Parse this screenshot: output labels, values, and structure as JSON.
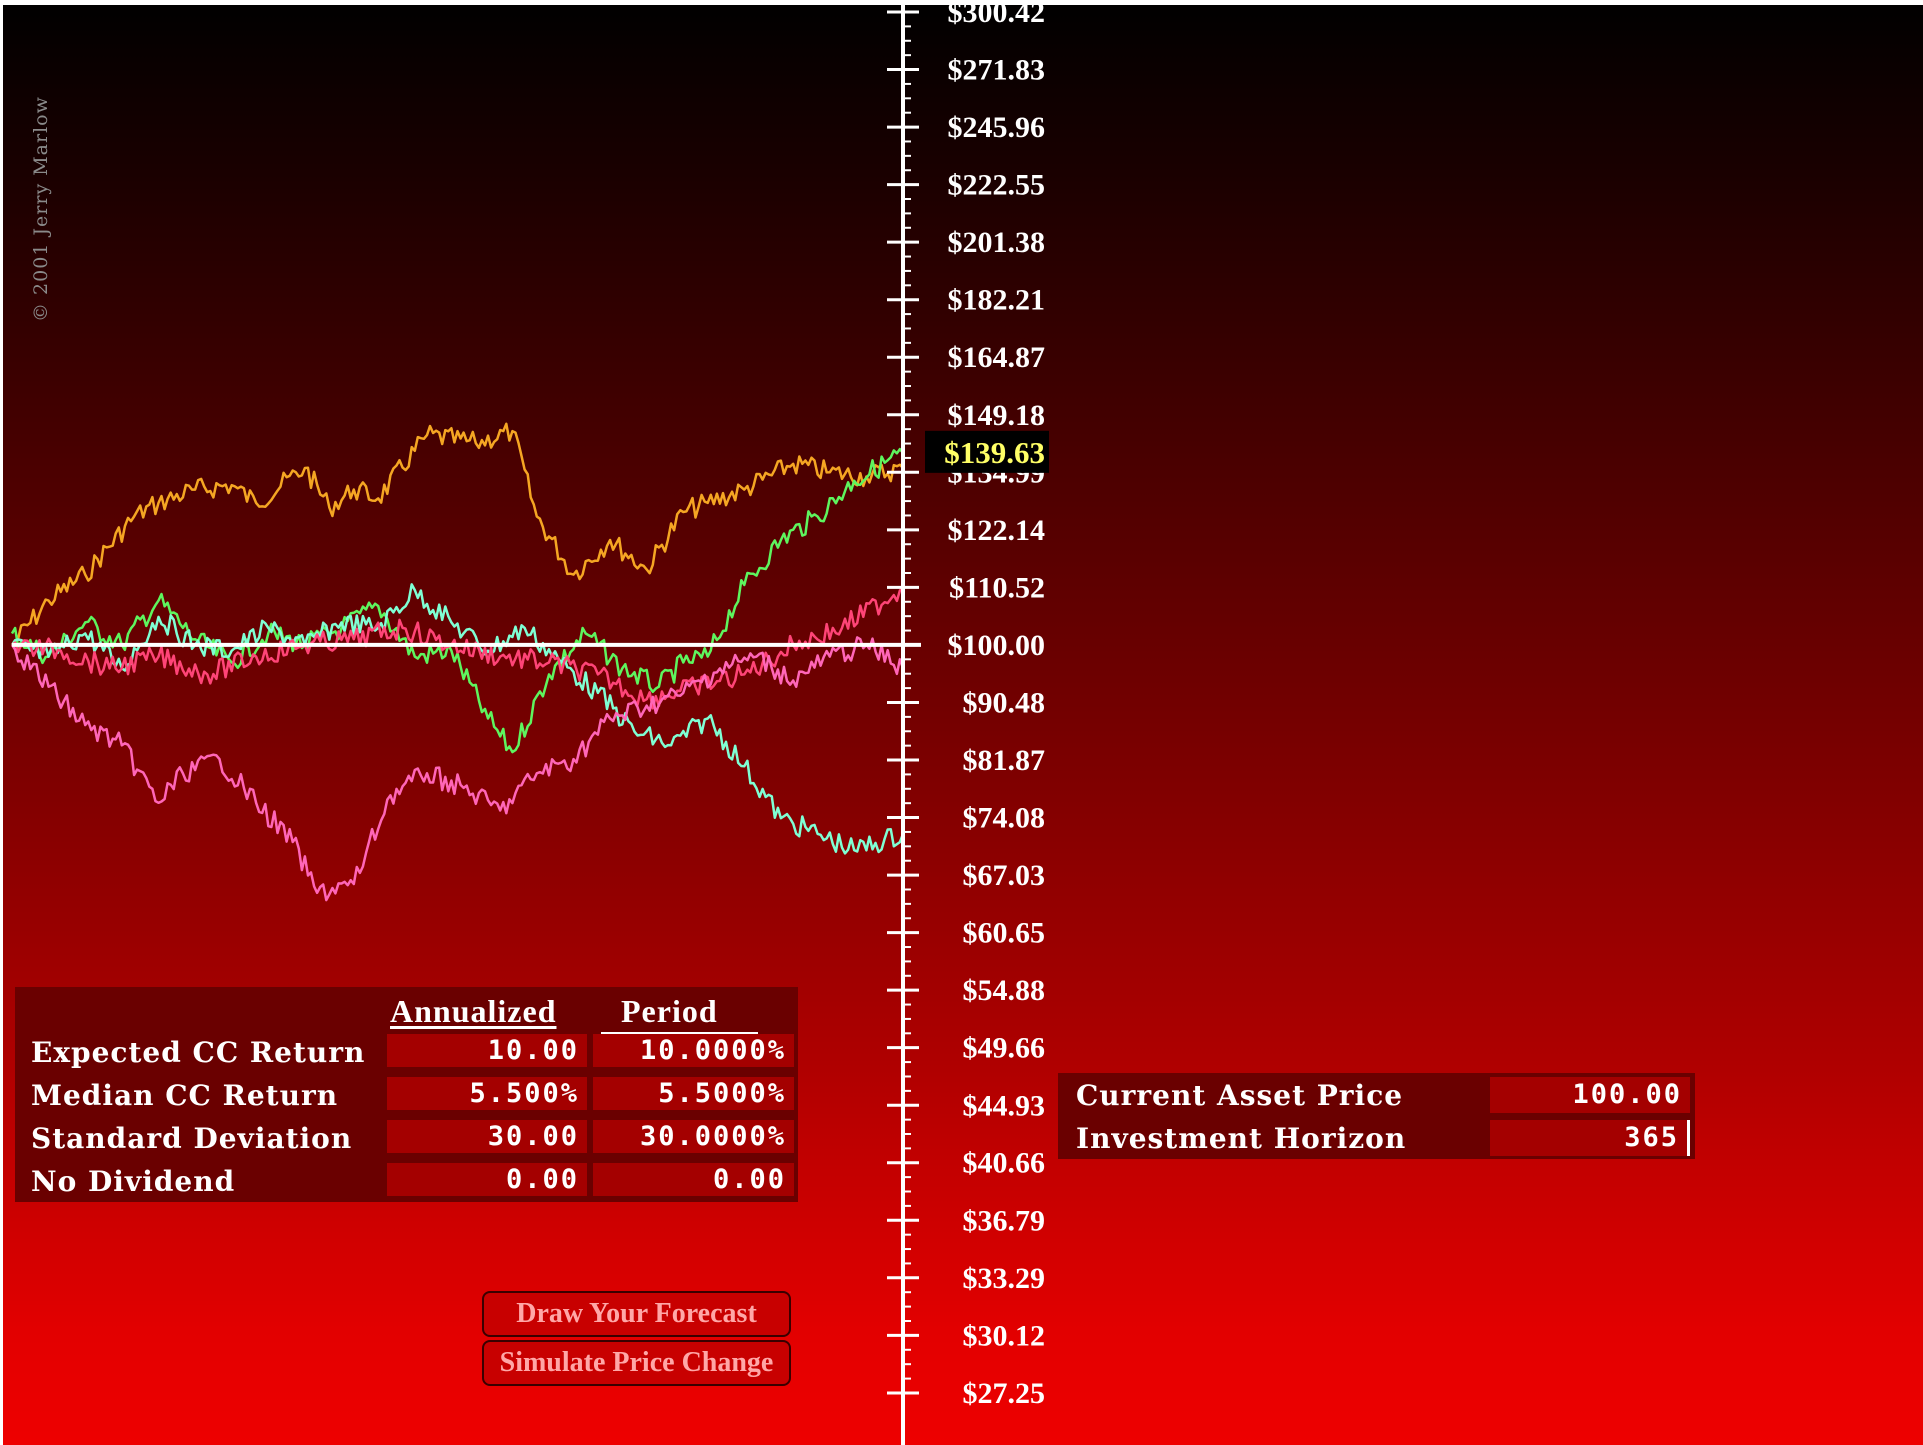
{
  "copyright": "© 2001 Jerry Marlow",
  "chart_data": {
    "type": "line",
    "xlabel": "",
    "ylabel": "",
    "y_scale": "log",
    "ylim": [
      25.6,
      308.0
    ],
    "x_range": [
      0,
      365
    ],
    "tick_labels": [
      "$300.42",
      "$271.83",
      "$245.96",
      "$222.55",
      "$201.38",
      "$182.21",
      "$164.87",
      "$149.18",
      "$134.99",
      "$122.14",
      "$110.52",
      "$100.00",
      "$90.48",
      "$81.87",
      "$74.08",
      "$67.03",
      "$60.65",
      "$54.88",
      "$49.66",
      "$44.93",
      "$40.66",
      "$36.79",
      "$33.29",
      "$30.12",
      "$27.25"
    ],
    "tick_values": [
      300.42,
      271.83,
      245.96,
      222.55,
      201.38,
      182.21,
      164.87,
      149.18,
      134.99,
      122.14,
      110.52,
      100.0,
      90.48,
      81.87,
      74.08,
      67.03,
      60.65,
      54.88,
      49.66,
      44.93,
      40.66,
      36.79,
      33.29,
      30.12,
      27.25
    ],
    "baseline": 100.0,
    "current_price_label": "$139.63",
    "current_price_value": 139.63,
    "series": [
      {
        "color": "#f5a623",
        "x": [
          0,
          15,
          30,
          50,
          60,
          75,
          90,
          100,
          120,
          130,
          140,
          150,
          170,
          190,
          205,
          215,
          230,
          245,
          260,
          275,
          285,
          300,
          320,
          335,
          350,
          365
        ],
        "values": [
          100,
          108,
          113,
          125,
          128,
          131,
          132,
          128,
          136,
          127,
          131,
          129,
          144,
          142,
          145,
          125,
          113,
          120,
          114,
          126,
          128,
          131,
          137,
          135,
          134,
          136
        ]
      },
      {
        "color": "#5ef55e",
        "x": [
          0,
          15,
          30,
          45,
          60,
          75,
          90,
          105,
          120,
          135,
          150,
          165,
          180,
          195,
          205,
          220,
          235,
          250,
          265,
          275,
          285,
          300,
          315,
          330,
          345,
          365
        ],
        "values": [
          102,
          98,
          104,
          100,
          108,
          101,
          97,
          102,
          100,
          103,
          107,
          98,
          99,
          88,
          83,
          95,
          102,
          96,
          93,
          97,
          98,
          111,
          120,
          125,
          133,
          139.63
        ]
      },
      {
        "color": "#7fffd4",
        "x": [
          0,
          15,
          30,
          45,
          60,
          75,
          90,
          105,
          120,
          135,
          150,
          165,
          180,
          195,
          210,
          225,
          240,
          255,
          270,
          285,
          300,
          315,
          330,
          345,
          365
        ],
        "values": [
          100,
          98,
          102,
          96,
          105,
          100,
          99,
          103,
          100,
          104,
          103,
          110,
          104,
          99,
          103,
          97,
          92,
          86,
          84,
          88,
          81,
          74,
          72,
          70,
          72
        ]
      },
      {
        "color": "#ff4477",
        "x": [
          0,
          20,
          40,
          60,
          80,
          100,
          120,
          140,
          160,
          180,
          200,
          220,
          240,
          260,
          280,
          300,
          320,
          340,
          365
        ],
        "values": [
          100,
          99,
          96,
          98,
          95,
          98,
          100,
          101,
          103,
          100,
          98,
          97,
          95,
          91,
          93,
          95,
          100,
          103,
          110.5
        ]
      },
      {
        "color": "#ff66b8",
        "x": [
          0,
          15,
          30,
          45,
          60,
          70,
          85,
          100,
          115,
          125,
          140,
          155,
          170,
          185,
          200,
          215,
          230,
          245,
          260,
          275,
          290,
          305,
          320,
          335,
          350,
          365
        ],
        "values": [
          100,
          93,
          87,
          84,
          76,
          80,
          82,
          76,
          71,
          65,
          66,
          77,
          80,
          78,
          75,
          80,
          82,
          88,
          90,
          92,
          96,
          98,
          94,
          98,
          100,
          96
        ]
      }
    ]
  },
  "stats": {
    "headers": {
      "annualized": "Annualized",
      "period": "Period"
    },
    "rows": [
      {
        "label": "Expected CC Return",
        "annualized": "10.00",
        "period": "10.0000%"
      },
      {
        "label": "Median CC Return",
        "annualized": "5.500%",
        "period": "5.5000%"
      },
      {
        "label": "Standard Deviation",
        "annualized": "30.00",
        "period": "30.0000%"
      },
      {
        "label": "No Dividend",
        "annualized": "0.00",
        "period": "0.00"
      }
    ]
  },
  "asset": {
    "current_price_label": "Current Asset Price",
    "current_price_value": "100.00",
    "horizon_label": "Investment Horizon",
    "horizon_value": "365"
  },
  "buttons": {
    "draw_forecast": "Draw Your Forecast",
    "simulate": "Simulate Price Change"
  }
}
